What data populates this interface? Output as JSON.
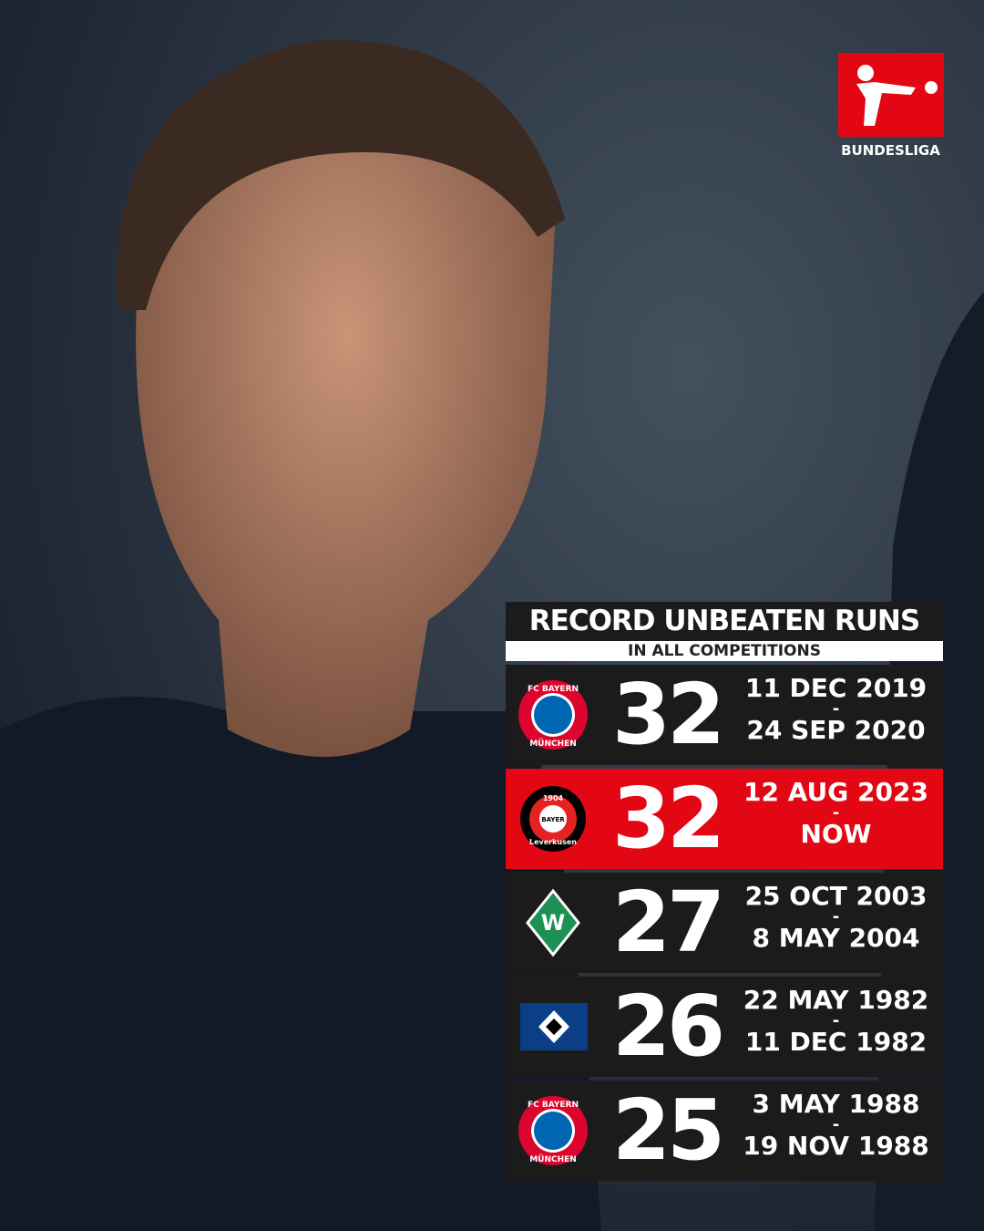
{
  "brand": "BUNDESLIGA",
  "header": {
    "title": "RECORD UNBEATEN RUNS",
    "subtitle": "IN ALL COMPETITIONS"
  },
  "table": {
    "rows": [
      {
        "club": "bayern",
        "logo_text": [
          "FC BAYERN",
          "MÜNCHEN"
        ],
        "games": "32",
        "start": "11 DEC 2019",
        "dash": "-",
        "end": "24 SEP 2020",
        "highlight": false
      },
      {
        "club": "leverkusen",
        "logo_text": [
          "1904",
          "BAYER",
          "Leverkusen"
        ],
        "games": "32",
        "start": "12 AUG 2023",
        "dash": "-",
        "end": "NOW",
        "highlight": true
      },
      {
        "club": "werder",
        "logo_text": [
          "W"
        ],
        "games": "27",
        "start": "25 OCT 2003",
        "dash": "-",
        "end": "8 MAY 2004",
        "highlight": false
      },
      {
        "club": "hamburg",
        "logo_text": [],
        "games": "26",
        "start": "22 MAY 1982",
        "dash": "-",
        "end": "11 DEC 1982",
        "highlight": false
      },
      {
        "club": "bayern",
        "logo_text": [
          "FC BAYERN",
          "MÜNCHEN"
        ],
        "games": "25",
        "start": "3 MAY 1988",
        "dash": "-",
        "end": "19 NOV 1988",
        "highlight": false
      }
    ]
  }
}
